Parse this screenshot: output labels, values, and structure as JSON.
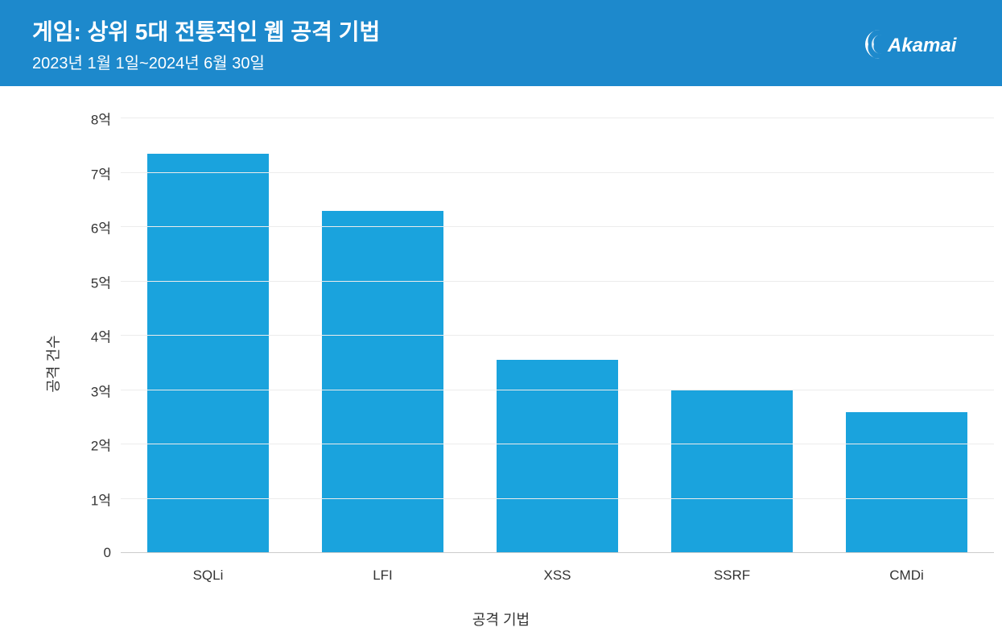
{
  "header": {
    "title": "게임: 상위 5대 전통적인 웹 공격 기법",
    "subtitle": "2023년 1월 1일~2024년 6월 30일",
    "background_color": "#1d89cc",
    "text_color": "#ffffff",
    "title_fontsize": 28,
    "subtitle_fontsize": 20,
    "logo_text": "Akamai"
  },
  "chart": {
    "type": "bar",
    "categories": [
      "SQLi",
      "LFI",
      "XSS",
      "SSRF",
      "CMDi"
    ],
    "values": [
      7.35,
      6.3,
      3.55,
      3.0,
      2.6
    ],
    "value_unit": "억",
    "bar_color": "#1aa3dd",
    "background_color": "#ffffff",
    "grid_color": "#ececec",
    "ylabel": "공격 건수",
    "xlabel": "공격 기법",
    "label_fontsize": 18,
    "tick_fontsize": 17,
    "ylim": [
      0,
      8
    ],
    "ytick_step": 1,
    "yticks": [
      {
        "value": 0,
        "label": "0"
      },
      {
        "value": 1,
        "label": "1억"
      },
      {
        "value": 2,
        "label": "2억"
      },
      {
        "value": 3,
        "label": "3억"
      },
      {
        "value": 4,
        "label": "4억"
      },
      {
        "value": 5,
        "label": "5억"
      },
      {
        "value": 6,
        "label": "6억"
      },
      {
        "value": 7,
        "label": "7억"
      },
      {
        "value": 8,
        "label": "8억"
      }
    ],
    "bar_width_ratio": 0.7,
    "text_color": "#333333"
  }
}
